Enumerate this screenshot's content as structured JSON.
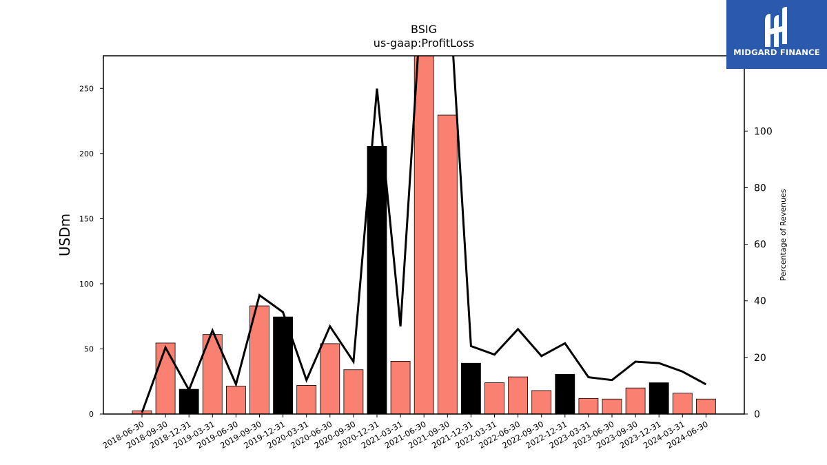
{
  "logo": {
    "text": "MIDGARD FINANCE"
  },
  "chart_data": {
    "type": "bar",
    "title": "BSIG",
    "subtitle": "us-gaap:ProfitLoss",
    "ylabel": "USDm",
    "y2label": "Percentage of Revenues",
    "ylim": [
      0,
      275
    ],
    "y2lim": [
      0,
      126.6
    ],
    "yticks": [
      0,
      50,
      100,
      150,
      200,
      250
    ],
    "y2ticks": [
      0,
      20,
      40,
      60,
      80,
      100
    ],
    "grid": false,
    "colors": {
      "quarter": "#fa8072",
      "year_end": "#000000",
      "line": "#000000"
    },
    "categories": [
      "2018-06-30",
      "2018-09-30",
      "2018-12-31",
      "2019-03-31",
      "2019-06-30",
      "2019-09-30",
      "2019-12-31",
      "2020-03-31",
      "2020-06-30",
      "2020-09-30",
      "2020-12-31",
      "2021-03-31",
      "2021-06-30",
      "2021-09-30",
      "2021-12-31",
      "2022-03-31",
      "2022-06-30",
      "2022-09-30",
      "2022-12-31",
      "2023-03-31",
      "2023-06-30",
      "2023-09-30",
      "2023-12-31",
      "2024-03-31",
      "2024-06-30"
    ],
    "series": [
      {
        "values": [
          2.5,
          54.5,
          19,
          61,
          21.5,
          83,
          74.5,
          22,
          54,
          34,
          205.5,
          40.5,
          290,
          229.5,
          39,
          24,
          28.5,
          18,
          30.5,
          12,
          11.5,
          20,
          24,
          16,
          11.5
        ],
        "year_end": [
          false,
          false,
          true,
          false,
          false,
          false,
          true,
          false,
          false,
          false,
          true,
          false,
          false,
          false,
          true,
          false,
          false,
          false,
          true,
          false,
          false,
          false,
          true,
          false,
          false
        ]
      },
      {
        "type": "line",
        "axis": "right",
        "values": [
          0.5,
          23.5,
          8.5,
          29.5,
          10.5,
          42,
          36,
          12,
          31,
          18.5,
          115,
          31,
          160,
          160,
          24,
          21,
          30,
          20.5,
          25,
          13,
          12,
          18.5,
          18,
          15,
          10.5
        ]
      }
    ]
  }
}
